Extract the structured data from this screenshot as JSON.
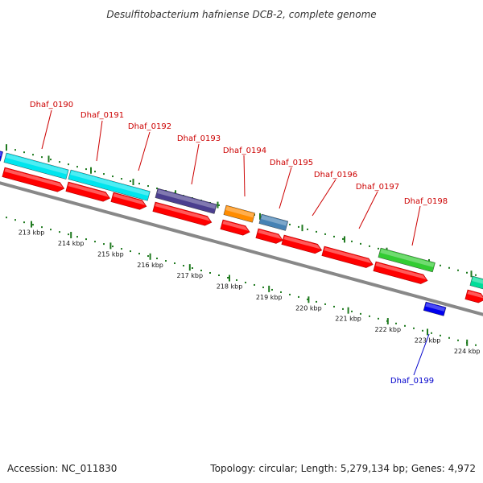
{
  "title": "Desulfitobacterium hafniense DCB-2, complete genome",
  "footer": {
    "accession": "Accession: NC_011830",
    "summary": "Topology: circular; Length: 5,279,134 bp; Genes: 4,972"
  },
  "colors": {
    "backbone": "#888888",
    "tick": "#1f7a1f",
    "cds": "#ff0000",
    "label_red": "#cc0000",
    "label_blue": "#0000cc",
    "leader_red": "#cc0000",
    "leader_blue": "#0000cc",
    "cyan": "#00e5ee",
    "slate": "#4b3f8f",
    "orange": "#ff8c00",
    "steel": "#4682b4",
    "green": "#33cc33",
    "blue": "#0000ee",
    "teal": "#00dd99"
  },
  "scale": {
    "ticks": [
      "213 kbp",
      "214 kbp",
      "215 kbp",
      "216 kbp",
      "217 kbp",
      "218 kbp",
      "219 kbp",
      "220 kbp",
      "221 kbp",
      "222 kbp",
      "223 kbp",
      "224 kbp"
    ]
  },
  "gene_labels": [
    {
      "name": "Dhaf_0190",
      "color": "label_red"
    },
    {
      "name": "Dhaf_0191",
      "color": "label_red"
    },
    {
      "name": "Dhaf_0192",
      "color": "label_red"
    },
    {
      "name": "Dhaf_0193",
      "color": "label_red"
    },
    {
      "name": "Dhaf_0194",
      "color": "label_red"
    },
    {
      "name": "Dhaf_0195",
      "color": "label_red"
    },
    {
      "name": "Dhaf_0196",
      "color": "label_red"
    },
    {
      "name": "Dhaf_0197",
      "color": "label_red"
    },
    {
      "name": "Dhaf_0198",
      "color": "label_red"
    },
    {
      "name": "Dhaf_0199",
      "color": "label_blue"
    }
  ]
}
